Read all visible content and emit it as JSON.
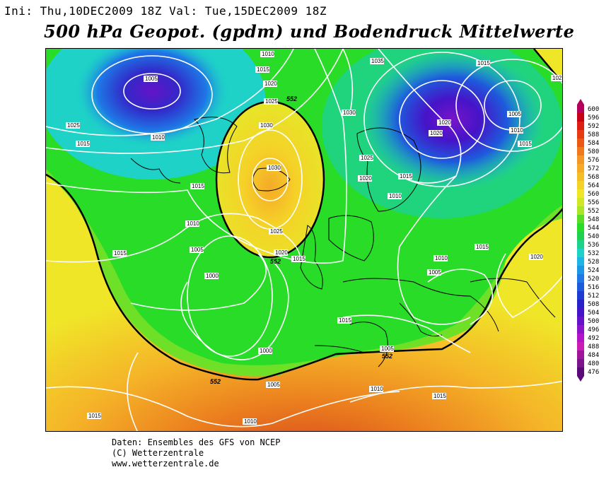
{
  "header": {
    "init_label": "Ini:",
    "init_time": "Thu,10DEC2009 18Z",
    "valid_label": "Val:",
    "valid_time": "Tue,15DEC2009 18Z"
  },
  "title": "500 hPa Geopot. (gpdm) und Bodendruck Mittelwerte",
  "map": {
    "bold_contour_label": "552",
    "pressure_labels": [
      "1010",
      "1015",
      "1020",
      "1025",
      "1030",
      "1035",
      "1005",
      "1000",
      "102"
    ],
    "colors": {
      "low_purple": "#5a10c8",
      "blue": "#1e5adc",
      "cyan": "#19c8e6",
      "green": "#1edc28",
      "light_green": "#7ae628",
      "yellow": "#f0e628",
      "orange": "#f5a51e",
      "red_orange": "#e0641e",
      "isobar": "#ffffff",
      "coastline": "#000000"
    }
  },
  "scale": {
    "values": [
      "600",
      "596",
      "592",
      "588",
      "584",
      "580",
      "576",
      "572",
      "568",
      "564",
      "560",
      "556",
      "552",
      "548",
      "544",
      "540",
      "536",
      "532",
      "528",
      "524",
      "520",
      "516",
      "512",
      "508",
      "504",
      "500",
      "496",
      "492",
      "488",
      "484",
      "480",
      "476"
    ],
    "colors": [
      "#b4005a",
      "#c80014",
      "#dc1e14",
      "#e63c14",
      "#eb5a14",
      "#f0781e",
      "#f59628",
      "#f5aa28",
      "#f5be28",
      "#f5d228",
      "#f0e628",
      "#d2e628",
      "#aae628",
      "#5adc28",
      "#28dc28",
      "#1ed250",
      "#1ed28c",
      "#1ed2c8",
      "#1eb4e6",
      "#1e96e6",
      "#1e78e6",
      "#1e5adc",
      "#1e3cd2",
      "#2823c8",
      "#4614c8",
      "#6414c8",
      "#8c14c8",
      "#b414c8",
      "#c81eb4",
      "#a0149b",
      "#7d148c",
      "#5a0a78"
    ]
  },
  "footer": {
    "line1": "Daten: Ensembles des GFS von NCEP",
    "line2": "(C) Wetterzentrale",
    "line3": "www.wetterzentrale.de"
  }
}
